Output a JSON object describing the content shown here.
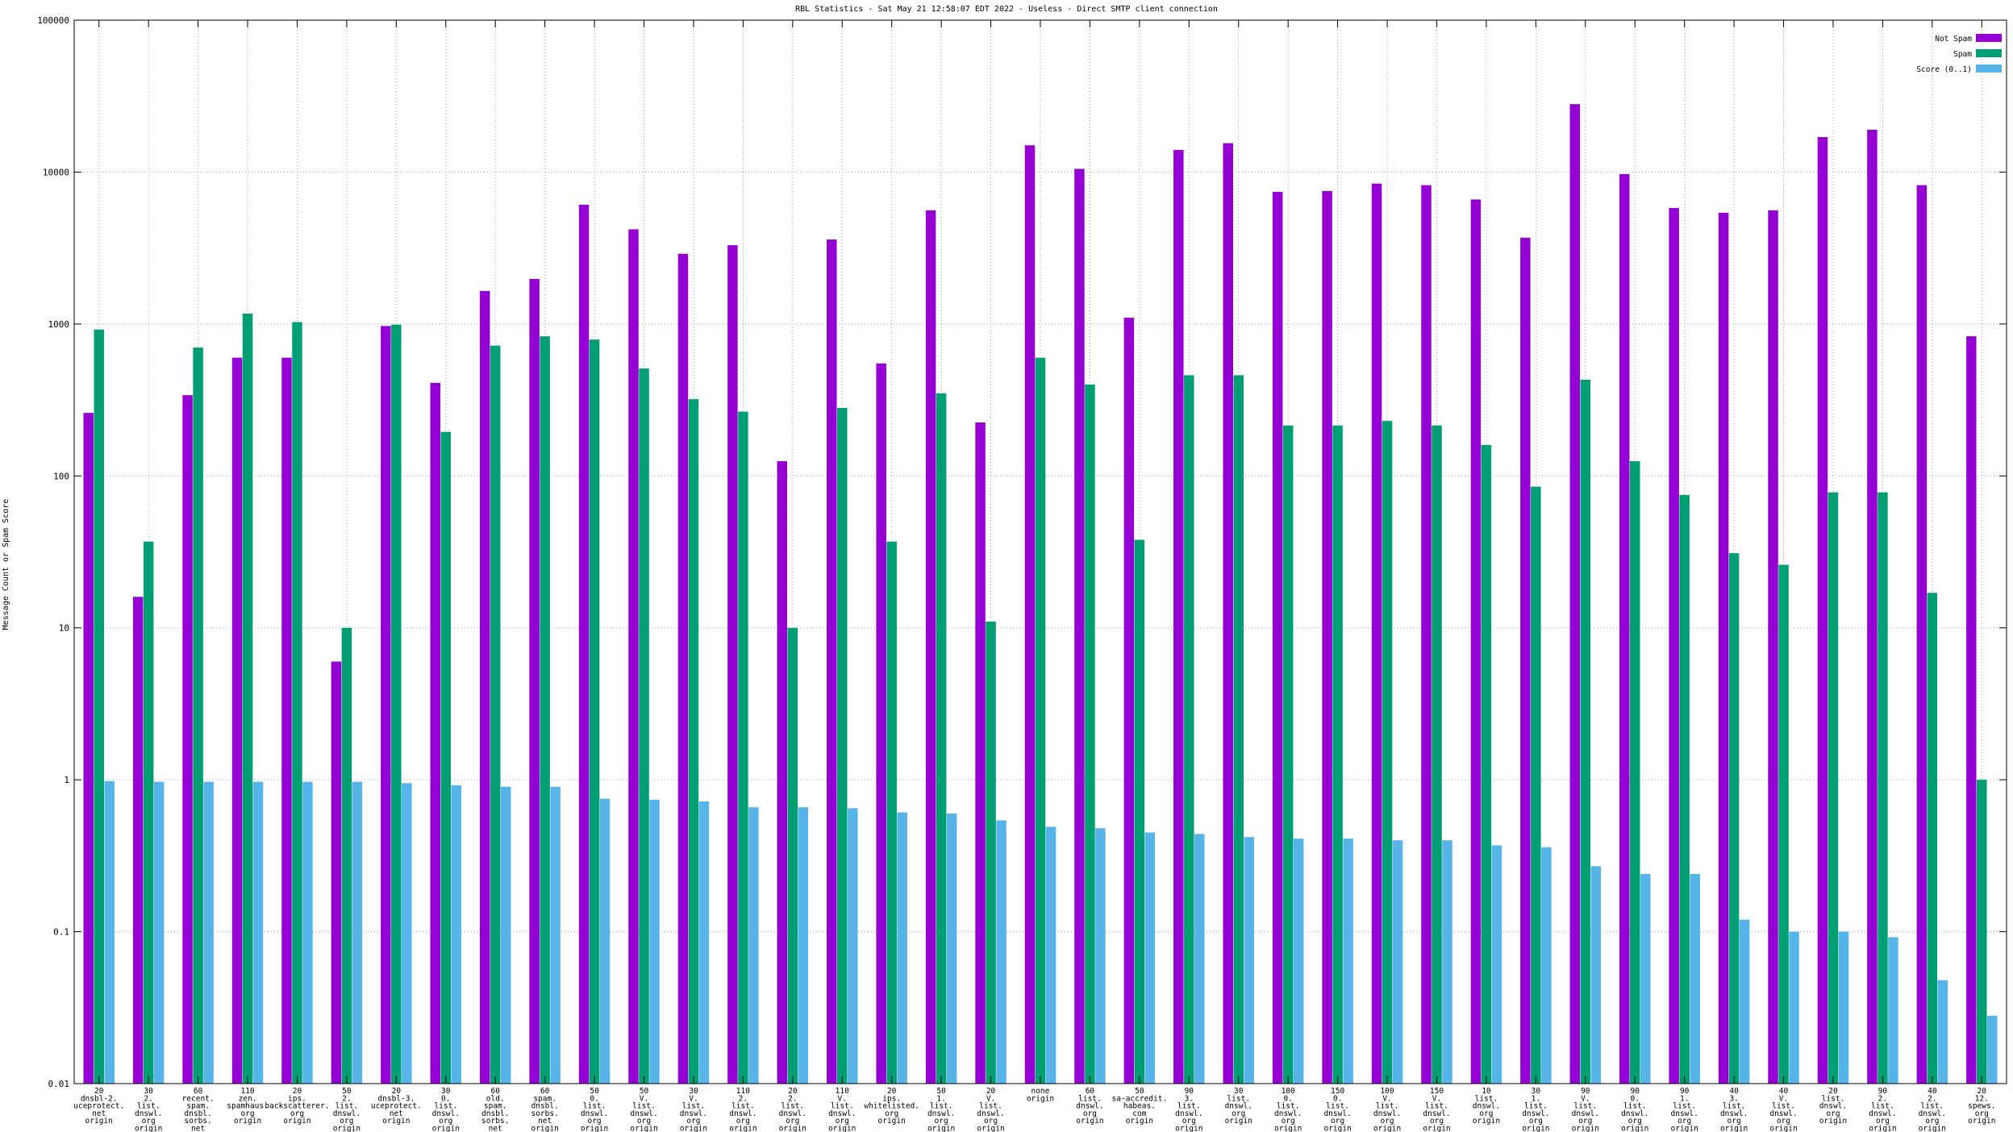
{
  "chart_data": {
    "type": "bar",
    "title": "RBL Statistics - Sat May 21 12:58:07 EDT 2022 - Useless - Direct SMTP client connection",
    "xlabel": "",
    "ylabel": "Message Count or Spam Score",
    "yscale": "log",
    "ylim": [
      0.01,
      100000
    ],
    "y_ticks": [
      "0.01",
      "0.1",
      "1",
      "10",
      "100",
      "1000",
      "10000",
      "100000"
    ],
    "grid": true,
    "legend_position": "top-right",
    "colors": {
      "not_spam": "#9400d3",
      "spam": "#009e73",
      "score": "#56b4e9"
    },
    "categories": [
      [
        "20",
        "dnsbl-2.",
        "uceprotect.",
        "net",
        "origin"
      ],
      [
        "30",
        "2.",
        "list.",
        "dnswl.",
        "org",
        "origin"
      ],
      [
        "60",
        "recent.",
        "spam.",
        "dnsbl.",
        "sorbs.",
        "net",
        "origin"
      ],
      [
        "110",
        "zen.",
        "spamhaus.",
        "org",
        "origin"
      ],
      [
        "20",
        "ips.",
        "backscatterer.",
        "org",
        "origin"
      ],
      [
        "50",
        "2.",
        "list.",
        "dnswl.",
        "org",
        "origin"
      ],
      [
        "20",
        "dnsbl-3.",
        "uceprotect.",
        "net",
        "origin"
      ],
      [
        "30",
        "0.",
        "list.",
        "dnswl.",
        "org",
        "origin"
      ],
      [
        "60",
        "old.",
        "spam.",
        "dnsbl.",
        "sorbs.",
        "net",
        "origin"
      ],
      [
        "60",
        "spam.",
        "dnsbl.",
        "sorbs.",
        "net",
        "origin"
      ],
      [
        "50",
        "0.",
        "list.",
        "dnswl.",
        "org",
        "origin"
      ],
      [
        "50",
        "V.",
        "list.",
        "dnswl.",
        "org",
        "origin"
      ],
      [
        "30",
        "V.",
        "list.",
        "dnswl.",
        "org",
        "origin"
      ],
      [
        "110",
        "2.",
        "list.",
        "dnswl.",
        "org",
        "origin"
      ],
      [
        "20",
        "2.",
        "list.",
        "dnswl.",
        "org",
        "origin"
      ],
      [
        "110",
        "V.",
        "list.",
        "dnswl.",
        "org",
        "origin"
      ],
      [
        "20",
        "ips.",
        "whitelisted.",
        "org",
        "origin"
      ],
      [
        "50",
        "1.",
        "list.",
        "dnswl.",
        "org",
        "origin"
      ],
      [
        "20",
        "V.",
        "list.",
        "dnswl.",
        "org",
        "origin"
      ],
      [
        "none",
        "origin"
      ],
      [
        "60",
        "list.",
        "dnswl.",
        "org",
        "origin"
      ],
      [
        "50",
        "sa-accredit.",
        "habeas.",
        "com",
        "origin"
      ],
      [
        "90",
        "3.",
        "list.",
        "dnswl.",
        "org",
        "origin"
      ],
      [
        "30",
        "list.",
        "dnswl.",
        "org",
        "origin"
      ],
      [
        "100",
        "0.",
        "list.",
        "dnswl.",
        "org",
        "origin"
      ],
      [
        "150",
        "0.",
        "list.",
        "dnswl.",
        "org",
        "origin"
      ],
      [
        "100",
        "V.",
        "list.",
        "dnswl.",
        "org",
        "origin"
      ],
      [
        "150",
        "V.",
        "list.",
        "dnswl.",
        "org",
        "origin"
      ],
      [
        "10",
        "list.",
        "dnswl.",
        "org",
        "origin"
      ],
      [
        "30",
        "1.",
        "list.",
        "dnswl.",
        "org",
        "origin"
      ],
      [
        "90",
        "V.",
        "list.",
        "dnswl.",
        "org",
        "origin"
      ],
      [
        "90",
        "0.",
        "list.",
        "dnswl.",
        "org",
        "origin"
      ],
      [
        "90",
        "1.",
        "list.",
        "dnswl.",
        "org",
        "origin"
      ],
      [
        "40",
        "3.",
        "list.",
        "dnswl.",
        "org",
        "origin"
      ],
      [
        "40",
        "V.",
        "list.",
        "dnswl.",
        "org",
        "origin"
      ],
      [
        "20",
        "list.",
        "dnswl.",
        "org",
        "origin"
      ],
      [
        "90",
        "2.",
        "list.",
        "dnswl.",
        "org",
        "origin"
      ],
      [
        "40",
        "2.",
        "list.",
        "dnswl.",
        "org",
        "origin"
      ],
      [
        "20",
        "12.",
        "spews.",
        "org",
        "origin"
      ]
    ],
    "series": [
      {
        "name": "Not Spam",
        "values": [
          260,
          16,
          340,
          600,
          600,
          6,
          970,
          410,
          1650,
          1980,
          6100,
          4200,
          2900,
          3300,
          125,
          3600,
          550,
          5600,
          225,
          15000,
          10500,
          1100,
          14000,
          15500,
          7400,
          7500,
          8400,
          8200,
          6600,
          3700,
          28000,
          9700,
          5800,
          5400,
          5600,
          17000,
          19000,
          8200,
          830
        ]
      },
      {
        "name": "Spam",
        "values": [
          920,
          37,
          700,
          1170,
          1030,
          10,
          990,
          195,
          720,
          830,
          790,
          510,
          320,
          265,
          10,
          280,
          37,
          350,
          11,
          600,
          400,
          38,
          460,
          460,
          215,
          215,
          230,
          215,
          160,
          85,
          430,
          125,
          75,
          31,
          26,
          78,
          78,
          17,
          1
        ]
      },
      {
        "name": "Score (0..1)",
        "values": [
          0.98,
          0.97,
          0.97,
          0.97,
          0.97,
          0.97,
          0.95,
          0.92,
          0.9,
          0.9,
          0.75,
          0.74,
          0.72,
          0.66,
          0.66,
          0.65,
          0.61,
          0.6,
          0.54,
          0.49,
          0.48,
          0.45,
          0.44,
          0.42,
          0.41,
          0.41,
          0.4,
          0.4,
          0.37,
          0.36,
          0.27,
          0.24,
          0.24,
          0.12,
          0.1,
          0.1,
          0.092,
          0.048,
          0.028
        ]
      }
    ]
  }
}
